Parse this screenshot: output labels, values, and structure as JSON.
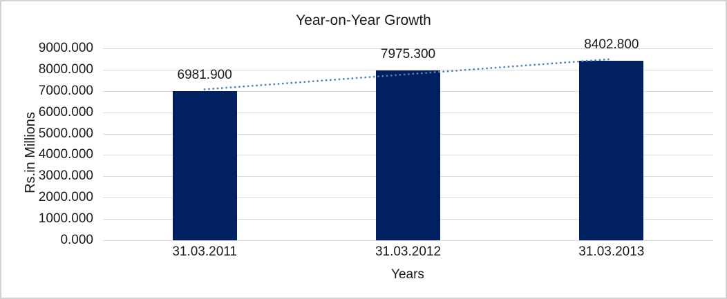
{
  "chart_data": {
    "type": "bar",
    "title": "Year-on-Year Growth",
    "xlabel": "Years",
    "ylabel": "Rs.in Millions",
    "categories": [
      "31.03.2011",
      "31.03.2012",
      "31.03.2013"
    ],
    "values": [
      6981.9,
      7975.3,
      8402.8
    ],
    "data_labels": [
      "6981.900",
      "7975.300",
      "8402.800"
    ],
    "y_ticks": [
      "9000.000",
      "8000.000",
      "7000.000",
      "6000.000",
      "5000.000",
      "4000.000",
      "3000.000",
      "2000.000",
      "1000.000",
      "0.000"
    ],
    "y_tick_values": [
      9000,
      8000,
      7000,
      6000,
      5000,
      4000,
      3000,
      2000,
      1000,
      0
    ],
    "ylim": [
      0,
      9000
    ],
    "grid": true,
    "legend_position": "none",
    "trendline": {
      "type": "linear",
      "style": "dotted",
      "endpoint_values": [
        7076.2,
        8497.1
      ]
    },
    "colors": {
      "bar": "#002060",
      "trendline": "#4E81BD",
      "gridline": "#D9D9D9",
      "text": "#1A1A1A",
      "frame_border": "#D3D3D3",
      "background": "#FFFFFF"
    }
  }
}
